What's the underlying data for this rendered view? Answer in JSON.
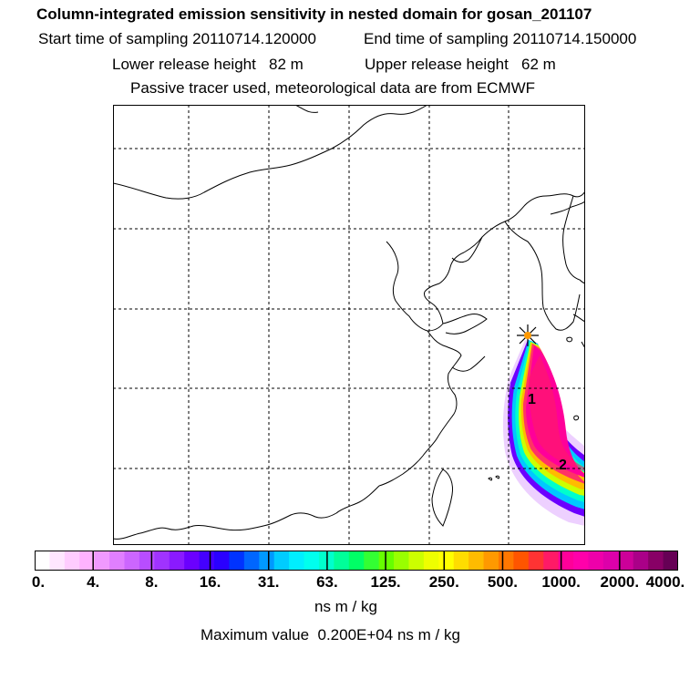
{
  "header": {
    "title": "Column-integrated emission sensitivity in nested domain for gosan_201107",
    "start_label": "Start time of sampling",
    "start_value": "20110714.120000",
    "end_label": "End time of sampling",
    "end_value": "20110714.150000",
    "lower_label": "Lower release height",
    "lower_value": "82 m",
    "upper_label": "Upper release height",
    "upper_value": "62 m",
    "tracer_note": "Passive tracer used, meteorological data are from ECMWF"
  },
  "map": {
    "release_site_marker": "star-icon",
    "plume_labels": [
      "1",
      "2"
    ]
  },
  "colorbar": {
    "colors": [
      "#ffffff",
      "#ffe6ff",
      "#ffccff",
      "#ffb3ff",
      "#f099ff",
      "#e07fff",
      "#cc66ff",
      "#b84dff",
      "#a033ff",
      "#8a1aff",
      "#6b00ff",
      "#4400ff",
      "#2a00ff",
      "#0033ff",
      "#0066ff",
      "#0099ff",
      "#00ccff",
      "#00eeff",
      "#00ffee",
      "#00ffcc",
      "#00ff99",
      "#00ff66",
      "#33ff33",
      "#66ff00",
      "#99ff00",
      "#ccff00",
      "#eeff00",
      "#ffff00",
      "#ffdd00",
      "#ffbb00",
      "#ff9900",
      "#ff7700",
      "#ff5500",
      "#ff3333",
      "#ff1a66",
      "#ff0099",
      "#ff00aa",
      "#ee00aa",
      "#dd00aa",
      "#cc0099",
      "#aa0088",
      "#880066",
      "#660055"
    ],
    "tick_labels": [
      "0.",
      "4.",
      "8.",
      "16.",
      "31.",
      "63.",
      "125.",
      "250.",
      "500.",
      "1000.",
      "2000.",
      "4000."
    ],
    "units": "ns m / kg",
    "max_label": "Maximum value",
    "max_value": "0.200E+04 ns m / kg"
  }
}
